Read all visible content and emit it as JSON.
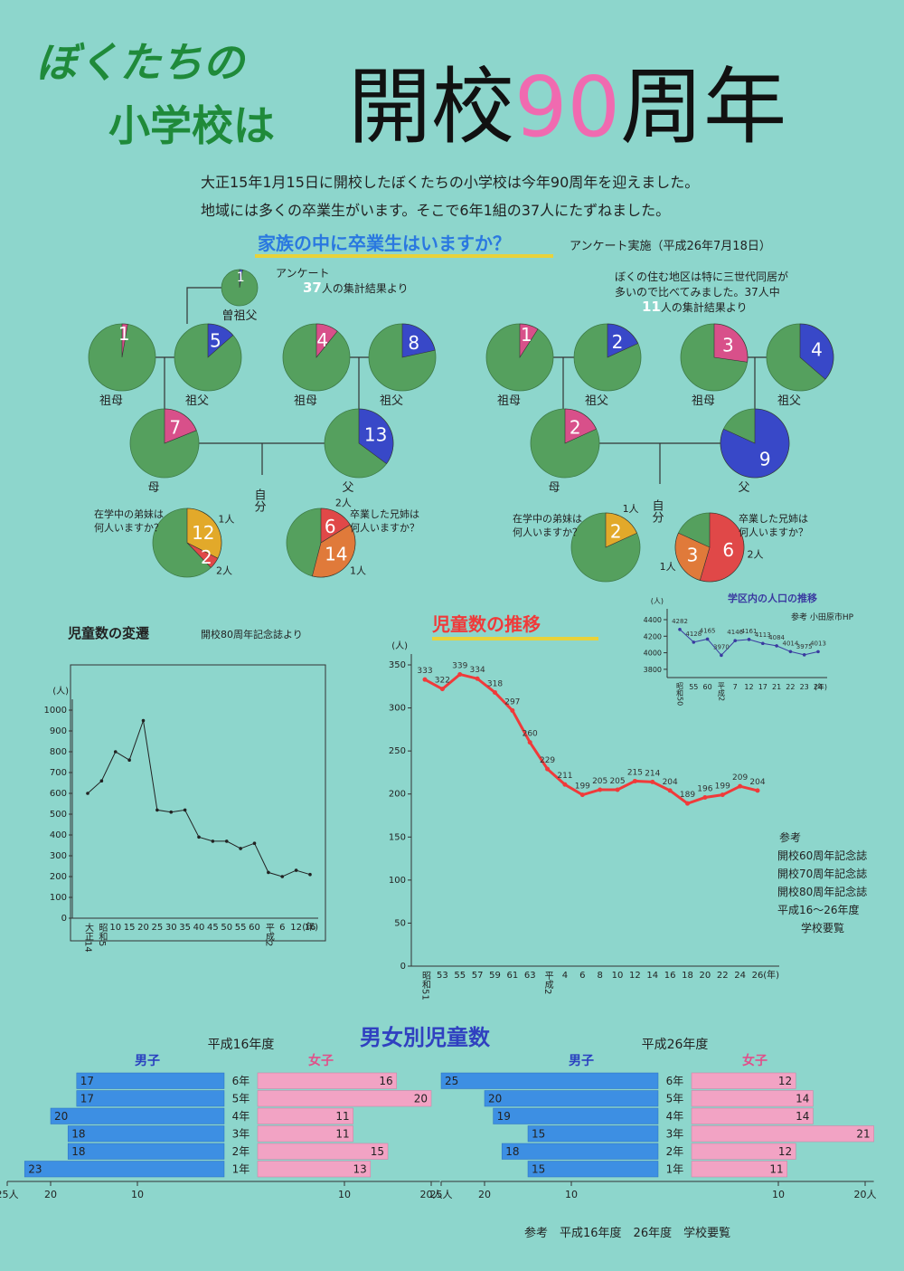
{
  "poster": {
    "title_line1": "ぼくたちの",
    "title_line2": "小学校は",
    "title_main": [
      "開校",
      "90",
      "周年"
    ],
    "intro": [
      "大正15年1月15日に開校したぼくたちの小学校は今年90周年を迎えました。",
      "地域には多くの卒業生がいます。そこで6年1組の37人にたずねました。"
    ],
    "question": "家族の中に卒業生はいますか？",
    "survey_date": "アンケート実施（平成26年7月18日）",
    "self_label": "自分",
    "references": {
      "title": "参考",
      "lines": [
        "開校60周年記念誌",
        "開校70周年記念誌",
        "開校80周年記念誌",
        "平成16～26年度",
        "学校要覧"
      ]
    },
    "bar_section_title": "男女別児童数",
    "footer": "参考　平成16年度　26年度　学校要覧"
  },
  "chart_data": [
    {
      "type": "pie",
      "total": 37,
      "note_before": [
        "アンケート"
      ],
      "note_after": "人の集計結果より",
      "remainder_color": "#55a05e",
      "pies": [
        {
          "label": [
            "曽祖父"
          ],
          "values": [
            1
          ],
          "colors": [
            "#4a5cd0"
          ]
        },
        {
          "label": [
            "祖母"
          ],
          "values": [
            1
          ],
          "colors": [
            "#d8508a"
          ]
        },
        {
          "label": [
            "祖父"
          ],
          "values": [
            5
          ],
          "colors": [
            "#3848c8"
          ]
        },
        {
          "label": [
            "祖母"
          ],
          "values": [
            4
          ],
          "colors": [
            "#d8508a"
          ]
        },
        {
          "label": [
            "祖父"
          ],
          "values": [
            8
          ],
          "colors": [
            "#3848c8"
          ]
        },
        {
          "label": [
            "母"
          ],
          "values": [
            7
          ],
          "colors": [
            "#d8508a"
          ]
        },
        {
          "label": [
            "父"
          ],
          "values": [
            13
          ],
          "colors": [
            "#3848c8"
          ]
        },
        {
          "label": [
            "在学中の弟妹は",
            "何人いますか？"
          ],
          "values": [
            12,
            2
          ],
          "names": [
            "1人",
            "2人"
          ],
          "colors": [
            "#e2a92a",
            "#e04848"
          ]
        },
        {
          "label": [
            "卒業した兄姉は",
            "何人いますか？"
          ],
          "values": [
            6,
            14
          ],
          "names": [
            "2人",
            "1人"
          ],
          "colors": [
            "#e04848",
            "#e07a3a"
          ]
        }
      ]
    },
    {
      "type": "pie",
      "total": 11,
      "note_before": [
        "ぼくの住む地区は特に三世代同居が",
        "多いので比べてみました。37人中"
      ],
      "note_after": "人の集計結果より",
      "remainder_color": "#55a05e",
      "pies": [
        {
          "label": [
            "祖母"
          ],
          "values": [
            1
          ],
          "colors": [
            "#d8508a"
          ]
        },
        {
          "label": [
            "祖父"
          ],
          "values": [
            2
          ],
          "colors": [
            "#3848c8"
          ]
        },
        {
          "label": [
            "祖母"
          ],
          "values": [
            3
          ],
          "colors": [
            "#d8508a"
          ]
        },
        {
          "label": [
            "祖父"
          ],
          "values": [
            4
          ],
          "colors": [
            "#3848c8"
          ]
        },
        {
          "label": [
            "母"
          ],
          "values": [
            2
          ],
          "colors": [
            "#d8508a"
          ]
        },
        {
          "label": [
            "父"
          ],
          "values": [
            9
          ],
          "colors": [
            "#3848c8"
          ]
        },
        {
          "label": [
            "在学中の弟妹は",
            "何人いますか？"
          ],
          "values": [
            2
          ],
          "names": [
            "1人"
          ],
          "colors": [
            "#e2a92a"
          ]
        },
        {
          "label": [
            "卒業した兄姉は",
            "何人いますか？"
          ],
          "values": [
            6,
            3
          ],
          "names": [
            "2人",
            "1人"
          ],
          "colors": [
            "#e04848",
            "#e07a3a"
          ]
        }
      ]
    },
    {
      "type": "line",
      "title": "児童数の変遷",
      "subtitle": "開校80周年記念誌より",
      "ylabel": "(人)",
      "xlabel": "(年)",
      "color": "#222222",
      "data_labels": false,
      "categories": [
        "大正14",
        "昭和5",
        "10",
        "15",
        "20",
        "25",
        "30",
        "35",
        "40",
        "45",
        "50",
        "55",
        "60",
        "平成2",
        "6",
        "12",
        "16"
      ],
      "values": [
        600,
        660,
        800,
        760,
        950,
        520,
        510,
        520,
        390,
        370,
        370,
        335,
        360,
        220,
        200,
        230,
        210
      ],
      "ylim": [
        0,
        1000
      ],
      "yticks": [
        0,
        100,
        200,
        300,
        400,
        500,
        600,
        700,
        800,
        900,
        {
          "value": 1000,
          "label": "1000"
        }
      ]
    },
    {
      "type": "line",
      "title": "児童数の推移",
      "ylabel": "(人)",
      "xlabel": "(年)",
      "color": "#f03a3a",
      "data_labels": true,
      "categories": [
        "昭和51",
        "53",
        "55",
        "57",
        "59",
        "61",
        "63",
        "平成2",
        "4",
        "6",
        "8",
        "10",
        "12",
        "14",
        "16",
        "18",
        "20",
        "22",
        "24",
        "26"
      ],
      "values": [
        333,
        322,
        339,
        334,
        318,
        297,
        260,
        229,
        211,
        199,
        205,
        205,
        215,
        214,
        204,
        189,
        196,
        199,
        209,
        204
      ],
      "ylim": [
        0,
        350
      ],
      "yticks": [
        0,
        50,
        100,
        150,
        200,
        250,
        300,
        350
      ]
    },
    {
      "type": "line",
      "title": "学区内の人口の推移",
      "subtitle": "参考 小田原市HP",
      "ylabel": "(人)",
      "xlabel": "(年)",
      "color": "#3a3aa0",
      "data_labels": true,
      "categories": [
        "昭和50",
        "55",
        "60",
        "平成2",
        "7",
        "12",
        "17",
        "21",
        "22",
        "23",
        "24"
      ],
      "values": [
        4282,
        4128,
        4165,
        3970,
        4146,
        4161,
        4113,
        4084,
        4014,
        3975,
        4013
      ],
      "ylim": [
        3700,
        4400
      ],
      "yticks": [
        3800,
        4000,
        4200,
        4400
      ]
    },
    {
      "type": "bar",
      "title": "平成16年度",
      "categories": [
        "6年",
        "5年",
        "4年",
        "3年",
        "2年",
        "1年"
      ],
      "series": [
        {
          "name": "男子",
          "color": "#3d8fe3",
          "values": [
            17,
            17,
            20,
            18,
            18,
            23
          ],
          "xlim": [
            0,
            25
          ],
          "xticks": [
            {
              "value": 25,
              "label": "25人"
            },
            20,
            10
          ]
        },
        {
          "name": "女子",
          "color": "#f2a3c4",
          "values": [
            16,
            20,
            11,
            11,
            15,
            13
          ],
          "xlim": [
            0,
            21
          ],
          "xticks": [
            10,
            {
              "value": 20,
              "label": "20人"
            }
          ]
        }
      ]
    },
    {
      "type": "bar",
      "title": "平成26年度",
      "categories": [
        "6年",
        "5年",
        "4年",
        "3年",
        "2年",
        "1年"
      ],
      "series": [
        {
          "name": "男子",
          "color": "#3d8fe3",
          "values": [
            25,
            20,
            19,
            15,
            18,
            15
          ],
          "xlim": [
            0,
            25
          ],
          "xticks": [
            {
              "value": 25,
              "label": "25人"
            },
            20,
            10
          ]
        },
        {
          "name": "女子",
          "color": "#f2a3c4",
          "values": [
            12,
            14,
            14,
            21,
            12,
            11
          ],
          "xlim": [
            0,
            21
          ],
          "xticks": [
            10,
            {
              "value": 20,
              "label": "20人"
            }
          ]
        }
      ]
    }
  ]
}
